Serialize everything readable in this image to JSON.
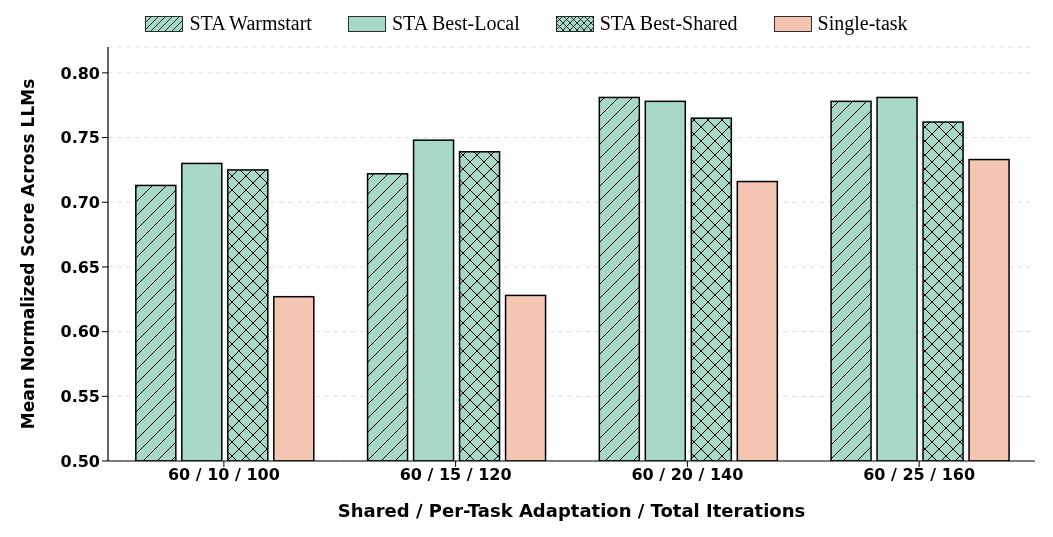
{
  "chart_data": {
    "type": "bar",
    "xlabel": "Shared / Per-Task Adaptation / Total Iterations",
    "ylabel": "Mean Normalized Score Across LLMs",
    "categories": [
      "60 / 10 / 100",
      "60 / 15 / 120",
      "60 / 20 / 140",
      "60 / 25 / 160"
    ],
    "series": [
      {
        "name": "STA Warmstart",
        "color": "#a8d8c6",
        "values": [
          0.713,
          0.722,
          0.781,
          0.778
        ]
      },
      {
        "name": "STA Best-Local",
        "color": "#a8d8c6",
        "values": [
          0.73,
          0.748,
          0.778,
          0.781
        ]
      },
      {
        "name": "STA Best-Shared",
        "color": "#a8d8c6",
        "values": [
          0.725,
          0.739,
          0.765,
          0.762
        ]
      },
      {
        "name": "Single-task",
        "color": "#f5c5b3",
        "values": [
          0.627,
          0.628,
          0.716,
          0.733
        ]
      }
    ],
    "ylim": [
      0.5,
      0.82
    ],
    "yticks": [
      {
        "value": 0.5,
        "label": "0.50"
      },
      0.55,
      {
        "value": 0.6,
        "label": "0.60"
      },
      0.65,
      {
        "value": 0.7,
        "label": "0.70"
      },
      0.75,
      {
        "value": 0.8,
        "label": "0.80"
      }
    ],
    "grid": "y",
    "legend": "top"
  }
}
